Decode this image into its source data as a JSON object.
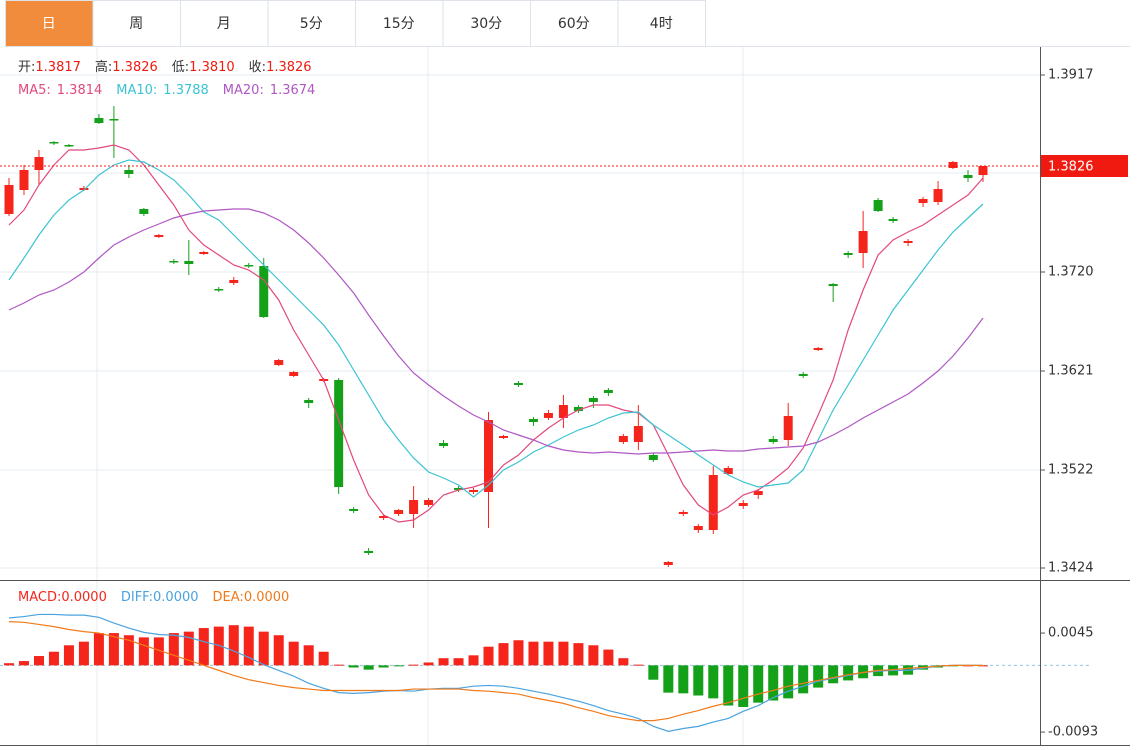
{
  "tabs": [
    "日",
    "周",
    "月",
    "5分",
    "15分",
    "30分",
    "60分",
    "4时"
  ],
  "active_tab": 0,
  "chart_data": [
    {
      "type": "candlestick",
      "up_color": "#f5251c",
      "down_color": "#15a01a",
      "quote": [
        {
          "name": "开:",
          "value": 1.3817
        },
        {
          "name": "高:",
          "value": 1.3826
        },
        {
          "name": "低:",
          "value": {
            "value": 1.381,
            "label": "1.3810"
          }
        },
        {
          "name": "收:",
          "value": 1.3826
        }
      ],
      "open": [
        1.3778,
        1.3802,
        1.3822,
        1.385,
        1.3847,
        1.3802,
        1.3874,
        1.3873,
        1.3822,
        1.3783,
        1.3755,
        1.3731,
        1.3731,
        1.3738,
        1.3703,
        1.3709,
        1.3727,
        1.3726,
        1.3627,
        1.3616,
        1.3592,
        1.3611,
        1.3612,
        1.3483,
        1.3441,
        1.3474,
        1.3478,
        1.3478,
        1.3487,
        1.3549,
        1.3504,
        1.35,
        1.35,
        1.3554,
        1.3609,
        1.3573,
        1.3574,
        1.3574,
        1.3585,
        1.3594,
        1.3602,
        1.355,
        1.355,
        1.3537,
        1.3427,
        1.3478,
        1.3462,
        1.3462,
        1.3518,
        1.3486,
        1.3497,
        1.3553,
        1.3552,
        1.3618,
        1.3642,
        1.3708,
        1.3739,
        1.3739,
        1.3792,
        1.3773,
        1.3749,
        1.3789,
        1.379,
        1.3824,
        1.3817,
        1.3817
      ],
      "high": [
        1.3814,
        1.3827,
        1.3842,
        1.3851,
        1.3848,
        1.3806,
        1.3878,
        1.3886,
        1.3827,
        1.3784,
        1.3758,
        1.3733,
        1.3752,
        1.3741,
        1.3705,
        1.3715,
        1.3729,
        1.3734,
        1.3633,
        1.3621,
        1.3594,
        1.3614,
        1.3614,
        1.3485,
        1.3444,
        1.3478,
        1.3483,
        1.3506,
        1.3494,
        1.3552,
        1.3506,
        1.3504,
        1.358,
        1.3557,
        1.3611,
        1.3575,
        1.3582,
        1.3597,
        1.3587,
        1.3596,
        1.3604,
        1.3558,
        1.3587,
        1.3539,
        1.3431,
        1.3482,
        1.3468,
        1.3526,
        1.3526,
        1.3492,
        1.3503,
        1.3556,
        1.3589,
        1.362,
        1.3645,
        1.3709,
        1.3741,
        1.3781,
        1.3794,
        1.3775,
        1.3753,
        1.3795,
        1.3811,
        1.3831,
        1.3822,
        1.3826
      ],
      "low": [
        1.3776,
        1.3797,
        1.3807,
        1.3847,
        1.3845,
        1.3801,
        1.3868,
        1.3834,
        1.3814,
        1.3776,
        1.3754,
        1.3728,
        1.3717,
        1.3737,
        1.37,
        1.3707,
        1.3724,
        1.3674,
        1.3626,
        1.3615,
        1.3584,
        1.361,
        1.3498,
        1.3479,
        1.3437,
        1.3472,
        1.3476,
        1.3464,
        1.3485,
        1.3544,
        1.35,
        1.3498,
        1.3464,
        1.3553,
        1.3605,
        1.3566,
        1.3572,
        1.3564,
        1.3579,
        1.3584,
        1.3596,
        1.3548,
        1.3542,
        1.353,
        1.3425,
        1.3476,
        1.3459,
        1.3458,
        1.3517,
        1.3483,
        1.3493,
        1.3548,
        1.3546,
        1.3614,
        1.3641,
        1.369,
        1.3734,
        1.3724,
        1.378,
        1.3769,
        1.3746,
        1.3785,
        1.3787,
        1.3823,
        1.381,
        1.381
      ],
      "close": [
        1.3807,
        1.3822,
        1.3835,
        1.3849,
        1.3846,
        1.3804,
        1.3869,
        1.3872,
        1.3818,
        1.3778,
        1.3757,
        1.373,
        1.3728,
        1.374,
        1.3702,
        1.3712,
        1.3726,
        1.3675,
        1.3632,
        1.362,
        1.3589,
        1.3613,
        1.3505,
        1.3481,
        1.3439,
        1.3476,
        1.3482,
        1.3492,
        1.3492,
        1.3546,
        1.3502,
        1.3502,
        1.3572,
        1.3556,
        1.3607,
        1.357,
        1.3579,
        1.3587,
        1.3581,
        1.359,
        1.3599,
        1.3556,
        1.3566,
        1.3532,
        1.343,
        1.348,
        1.3466,
        1.3517,
        1.3524,
        1.3489,
        1.3501,
        1.355,
        1.3576,
        1.3616,
        1.3644,
        1.3706,
        1.3737,
        1.3761,
        1.3781,
        1.3771,
        1.3751,
        1.3793,
        1.3803,
        1.383,
        1.3814,
        1.3826
      ],
      "series": [
        {
          "name": "MA5:",
          "color": "#e2497e",
          "last_value": 1.3814,
          "values": [
            1.3767,
            1.3782,
            1.3807,
            1.3827,
            1.3842,
            1.3842,
            1.3844,
            1.3847,
            1.3842,
            1.3827,
            1.3807,
            1.3787,
            1.3762,
            1.3747,
            1.3737,
            1.3727,
            1.3722,
            1.3712,
            1.3692,
            1.3662,
            1.3637,
            1.3612,
            1.3572,
            1.3532,
            1.3497,
            1.3477,
            1.347,
            1.3472,
            1.3482,
            1.3497,
            1.3502,
            1.3505,
            1.351,
            1.3527,
            1.3537,
            1.3552,
            1.3564,
            1.3574,
            1.3582,
            1.3587,
            1.3587,
            1.3582,
            1.3579,
            1.3567,
            1.3537,
            1.3507,
            1.3487,
            1.3477,
            1.3485,
            1.3497,
            1.3502,
            1.3512,
            1.3524,
            1.3544,
            1.3577,
            1.3612,
            1.3662,
            1.3702,
            1.3737,
            1.3752,
            1.376,
            1.3767,
            1.3777,
            1.3787,
            1.3797,
            1.3814
          ]
        },
        {
          "name": "MA10:",
          "color": "#3cc3d2",
          "last_value": 1.3788,
          "values": [
            1.3712,
            1.3734,
            1.3757,
            1.3777,
            1.3792,
            1.3802,
            1.3817,
            1.3827,
            1.3832,
            1.383,
            1.3822,
            1.3812,
            1.3797,
            1.378,
            1.3772,
            1.3757,
            1.3742,
            1.3727,
            1.3712,
            1.3697,
            1.3682,
            1.3667,
            1.3647,
            1.3622,
            1.3597,
            1.3572,
            1.3552,
            1.3534,
            1.352,
            1.3514,
            1.3507,
            1.3495,
            1.3507,
            1.3522,
            1.353,
            1.354,
            1.3547,
            1.3555,
            1.3562,
            1.3567,
            1.3574,
            1.3579,
            1.358,
            1.3567,
            1.3557,
            1.3547,
            1.3537,
            1.3527,
            1.3517,
            1.351,
            1.3505,
            1.3507,
            1.3509,
            1.3522,
            1.3552,
            1.3582,
            1.3607,
            1.3632,
            1.3657,
            1.3682,
            1.3702,
            1.3722,
            1.3742,
            1.376,
            1.3774,
            1.3788
          ]
        },
        {
          "name": "MA20:",
          "color": "#b057c4",
          "last_value": 1.3674,
          "values": [
            1.3682,
            1.3689,
            1.3697,
            1.3702,
            1.371,
            1.372,
            1.3734,
            1.3747,
            1.3755,
            1.3762,
            1.3768,
            1.3774,
            1.3778,
            1.3781,
            1.3782,
            1.3783,
            1.3783,
            1.3779,
            1.3772,
            1.3762,
            1.3749,
            1.3734,
            1.3717,
            1.3699,
            1.3677,
            1.3656,
            1.3636,
            1.3619,
            1.3607,
            1.3596,
            1.3586,
            1.3577,
            1.357,
            1.3562,
            1.3557,
            1.3552,
            1.3546,
            1.3542,
            1.354,
            1.3539,
            1.354,
            1.3539,
            1.3538,
            1.3539,
            1.3539,
            1.354,
            1.3541,
            1.3542,
            1.3541,
            1.3541,
            1.3543,
            1.3544,
            1.3545,
            1.3546,
            1.355,
            1.3557,
            1.3565,
            1.3574,
            1.3582,
            1.359,
            1.3598,
            1.3609,
            1.3621,
            1.3636,
            1.3654,
            1.3674
          ]
        }
      ],
      "last_price": 1.3826,
      "last_price_color": "#f01a10",
      "ylim": [
        1.3412,
        1.3945
      ],
      "yticks": [
        1.3424,
        1.3522,
        1.3621,
        {
          "value": 1.372,
          "label": "1.3720"
        },
        1.3819,
        1.3917
      ],
      "grid": true
    },
    {
      "type": "macd",
      "series": [
        {
          "name": "MACD:",
          "kind": "bar",
          "color": "#f5251c",
          "down_color": "#15a01a",
          "last_value": {
            "value": 0,
            "label": "0.0000"
          },
          "values": [
            0.0003,
            0.0006,
            0.0013,
            0.0019,
            0.0028,
            0.0033,
            0.0045,
            0.0045,
            0.0042,
            0.0039,
            0.0039,
            0.0045,
            0.0047,
            0.0052,
            0.0054,
            0.0056,
            0.0054,
            0.0047,
            0.0042,
            0.0033,
            0.0028,
            0.0019,
            0.0001,
            -0.0003,
            -0.0006,
            -0.0003,
            -0.0001,
            0.0001,
            0.0004,
            0.001,
            0.001,
            0.0014,
            0.0026,
            0.0031,
            0.0035,
            0.0033,
            0.0033,
            0.0033,
            0.0031,
            0.0028,
            0.0022,
            0.001,
            0.0001,
            -0.002,
            -0.0038,
            -0.0039,
            -0.0042,
            -0.0046,
            -0.0056,
            -0.0058,
            -0.0052,
            -0.0049,
            -0.0046,
            -0.0039,
            -0.0031,
            -0.0025,
            -0.0021,
            -0.0018,
            -0.0015,
            -0.0014,
            -0.0013,
            -0.0006,
            -0.0003,
            -0.0001,
            0,
            0
          ]
        },
        {
          "name": "DIFF:",
          "kind": "line",
          "color": "#4aa3df",
          "last_value": {
            "value": 0,
            "label": "0.0000"
          },
          "values": [
            0.0066,
            0.0068,
            0.0071,
            0.0071,
            0.007,
            0.007,
            0.0067,
            0.0059,
            0.0052,
            0.0046,
            0.0043,
            0.0042,
            0.0039,
            0.0033,
            0.0028,
            0.002,
            0.0011,
            0.0001,
            -0.0007,
            -0.0015,
            -0.0025,
            -0.0032,
            -0.0038,
            -0.0039,
            -0.0038,
            -0.0036,
            -0.0035,
            -0.0036,
            -0.0033,
            -0.0032,
            -0.0032,
            -0.0029,
            -0.0028,
            -0.0029,
            -0.0032,
            -0.0036,
            -0.004,
            -0.0045,
            -0.005,
            -0.0056,
            -0.0063,
            -0.0068,
            -0.0074,
            -0.0085,
            -0.0092,
            -0.0088,
            -0.0085,
            -0.0079,
            -0.0074,
            -0.0064,
            -0.0056,
            -0.0045,
            -0.0036,
            -0.0029,
            -0.0022,
            -0.0018,
            -0.0014,
            -0.001,
            -0.0008,
            -0.0007,
            -0.0007,
            -0.0004,
            -0.0001,
            0,
            0,
            0
          ]
        },
        {
          "name": "DEA:",
          "kind": "line",
          "color": "#f07a1a",
          "last_value": {
            "value": 0,
            "label": "0.0000"
          },
          "values": [
            0.0061,
            0.006,
            0.0057,
            0.0054,
            0.005,
            0.0047,
            0.0045,
            0.004,
            0.0035,
            0.0028,
            0.0021,
            0.0014,
            0.0007,
            0,
            -0.0007,
            -0.0014,
            -0.002,
            -0.0024,
            -0.0028,
            -0.0031,
            -0.0033,
            -0.0035,
            -0.0035,
            -0.0035,
            -0.0035,
            -0.0035,
            -0.0035,
            -0.0033,
            -0.0033,
            -0.0033,
            -0.0033,
            -0.0035,
            -0.0036,
            -0.0038,
            -0.004,
            -0.0045,
            -0.0049,
            -0.0053,
            -0.0059,
            -0.0064,
            -0.007,
            -0.0074,
            -0.0077,
            -0.0077,
            -0.0074,
            -0.0068,
            -0.0063,
            -0.0057,
            -0.0052,
            -0.0046,
            -0.004,
            -0.0035,
            -0.0029,
            -0.0025,
            -0.0021,
            -0.0017,
            -0.0013,
            -0.001,
            -0.0007,
            -0.0006,
            -0.0004,
            -0.0003,
            -0.0001,
            0,
            0,
            0
          ]
        }
      ],
      "ylim": [
        -0.0111,
        0.0112
      ],
      "yticks": [
        -0.0093,
        0.0045
      ],
      "zero_line": true
    }
  ]
}
